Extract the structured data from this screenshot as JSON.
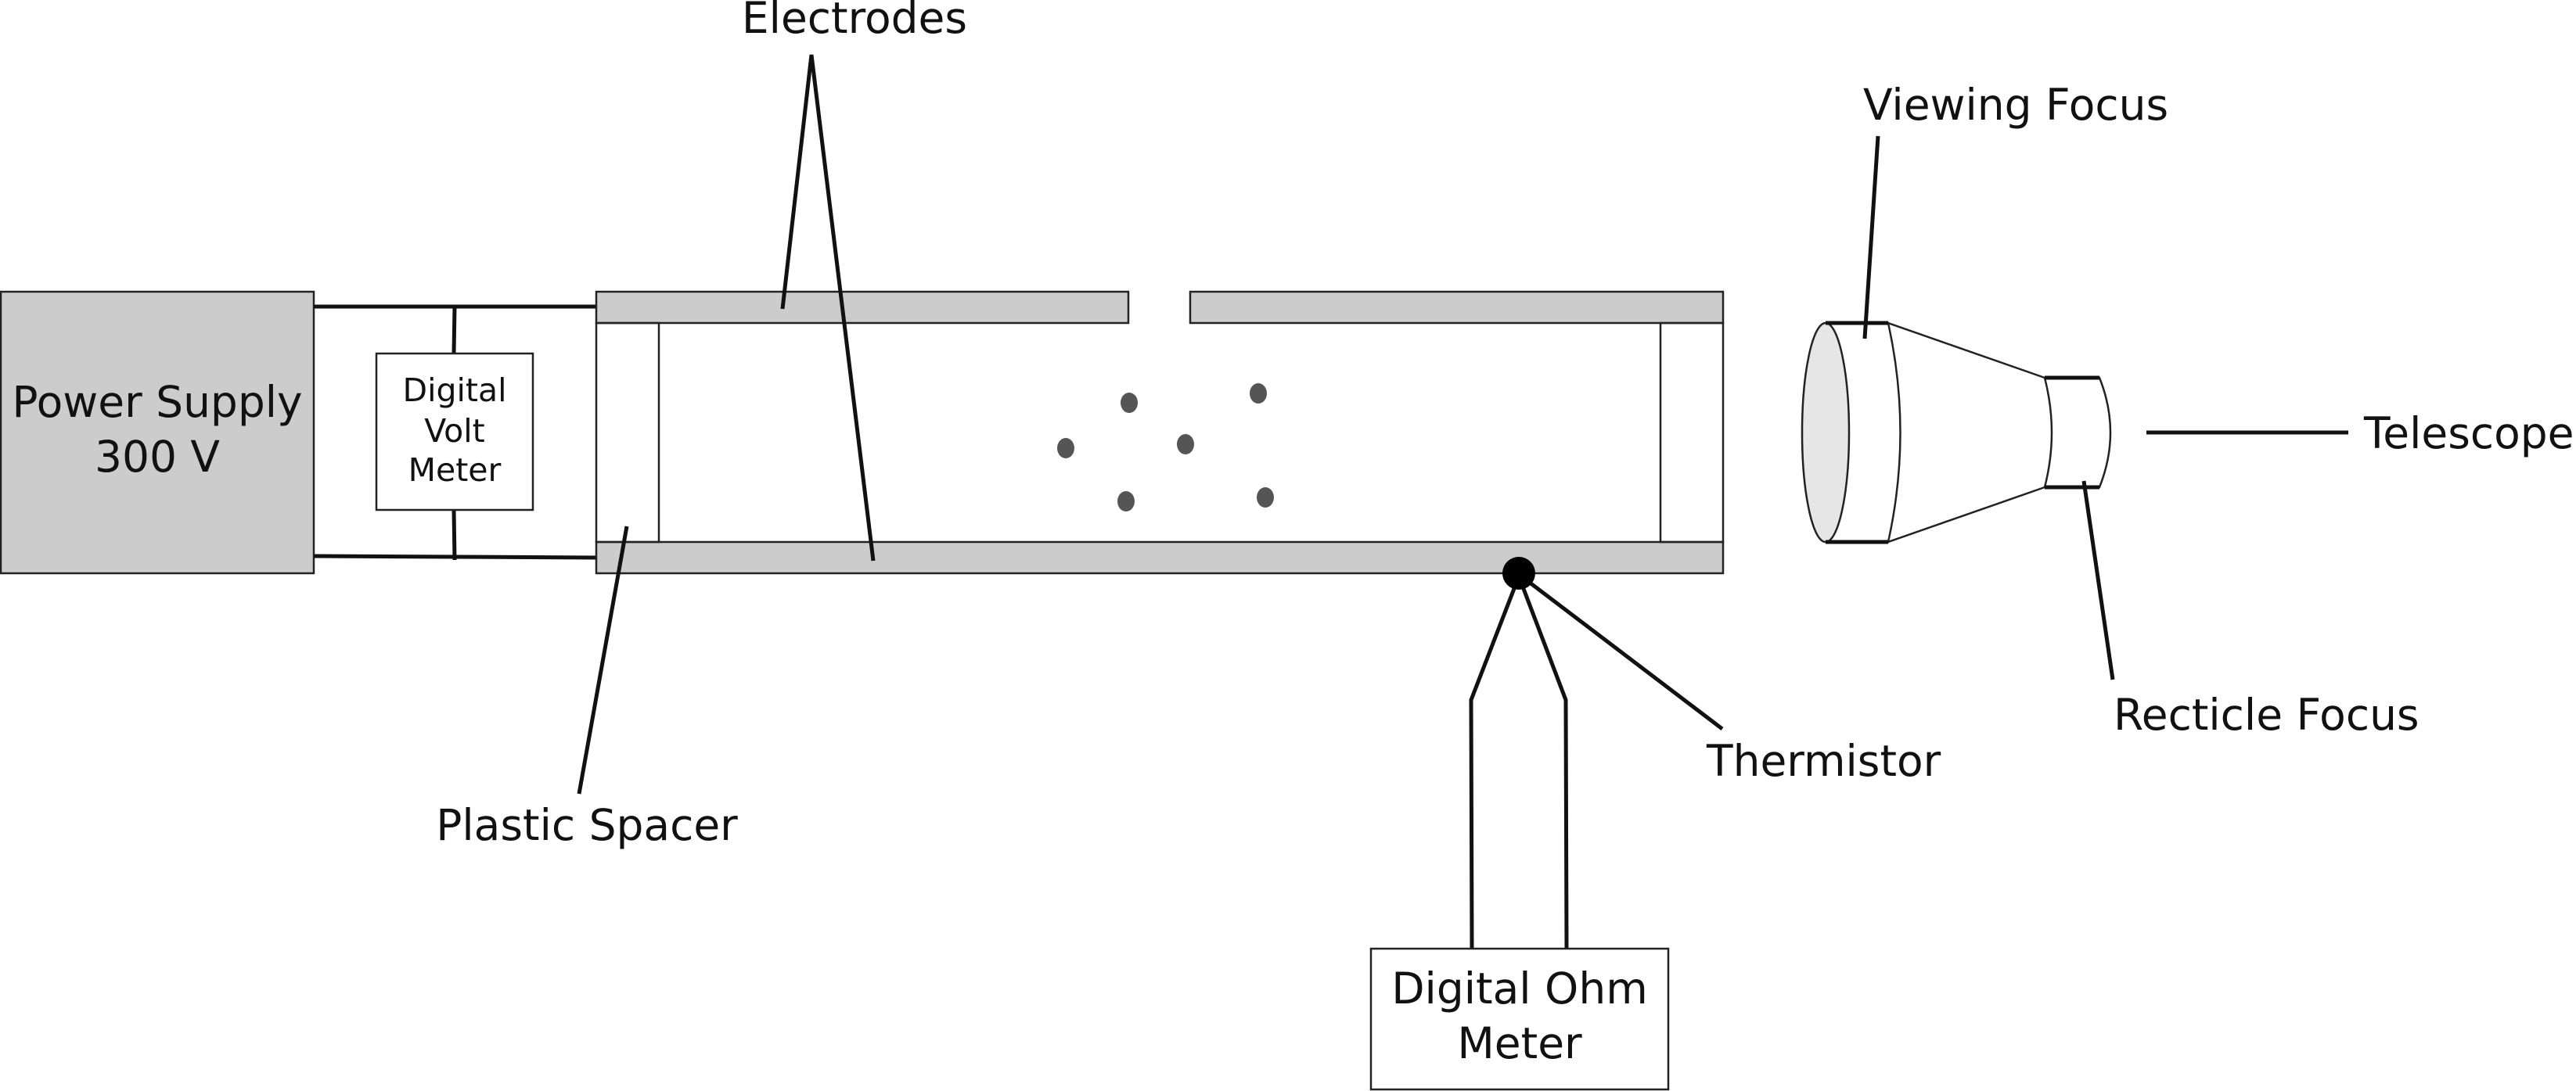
{
  "labels": {
    "electrodes": "Electrodes",
    "viewing_focus": "Viewing Focus",
    "telescope": "Telescope",
    "recticle_focus": "Recticle Focus",
    "thermistor": "Thermistor",
    "plastic_spacer": "Plastic Spacer"
  },
  "power_supply": {
    "line1": "Power Supply",
    "line2": "300 V"
  },
  "volt_meter": {
    "line1": "Digital",
    "line2": "Volt",
    "line3": "Meter"
  },
  "ohm_meter": {
    "line1": "Digital Ohm",
    "line2": "Meter"
  },
  "colors": {
    "plate_fill": "#cccccc",
    "droplet": "#555555",
    "lens_fill": "#e6e6e6",
    "thermistor": "#000000"
  }
}
